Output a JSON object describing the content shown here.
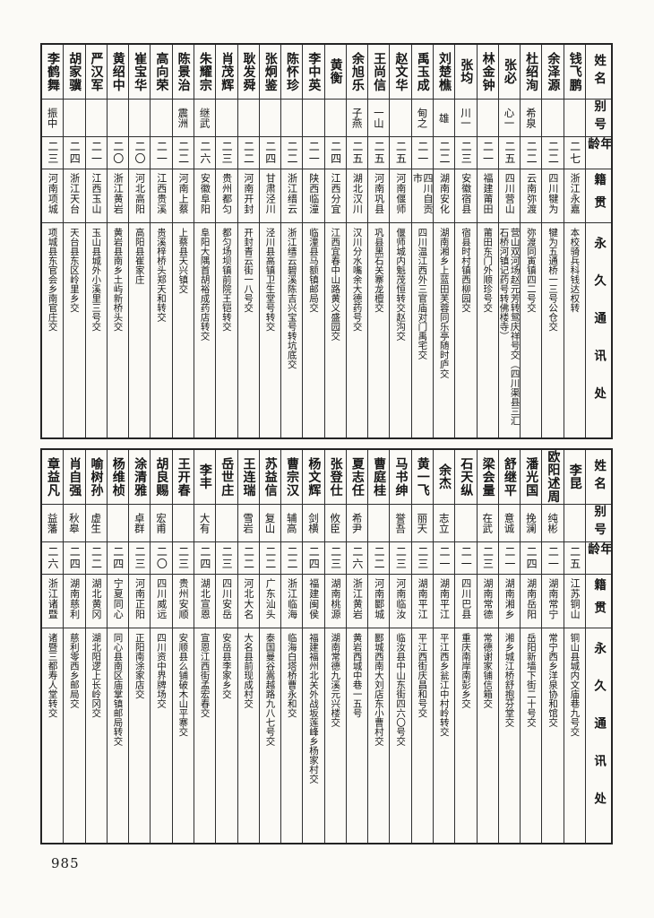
{
  "page_number": "985",
  "column_headers": {
    "name": "姓名",
    "alias": "别号",
    "age": "年龄",
    "origin": "籍贯",
    "address": "永久通讯处"
  },
  "tables": [
    {
      "entries": [
        {
          "name": "钱飞鹏",
          "alias": "",
          "age": "二七",
          "origin": "浙江永嘉",
          "address": "本校骑兵科钱达权转"
        },
        {
          "name": "余泽源",
          "alias": "",
          "age": "二二",
          "origin": "四川犍为",
          "address": "犍为五通桥一三号公仓交"
        },
        {
          "name": "杜绍洵",
          "alias": "希泉",
          "age": "二二",
          "origin": "云南弥渡",
          "address": "弥渡同寅镇四二号交"
        },
        {
          "name": "张必",
          "alias": "心一",
          "age": "二五",
          "origin": "四川营山",
          "address": "营山双河场赵元芳转鸳庆祥号交（四川渠县三汇石桥河镇记药号转佛楼寺）"
        },
        {
          "name": "林金钟",
          "alias": "",
          "age": "二一",
          "origin": "福建莆田",
          "address": "莆田东门外顺珍号交"
        },
        {
          "name": "张均",
          "alias": "川一",
          "age": "二三",
          "origin": "安徽宿县",
          "address": "宿县时村镇西柳园交"
        },
        {
          "name": "刘楚樵",
          "alias": "雄",
          "age": "二二",
          "origin": "湖南安化",
          "address": "湖南湘乡上蓝田芙蓉同乐亭随时庐交"
        },
        {
          "name": "禹玉成",
          "alias": "甸之",
          "age": "二一",
          "origin": "四川自贡市",
          "address": "四川温江西外三官庙对门禹宅交"
        },
        {
          "name": "赵文华",
          "alias": "",
          "age": "二五",
          "origin": "河南偃师",
          "address": "偃师城内魁茂恒转交赵沟交"
        },
        {
          "name": "王尚信",
          "alias": "一山",
          "age": "二五",
          "origin": "河南巩县",
          "address": "巩县黑石关寨龙檀交"
        },
        {
          "name": "余旭乐",
          "alias": "子燕",
          "age": "二五",
          "origin": "湖北汉川",
          "address": "汉川分水嘴余大德药号交"
        },
        {
          "name": "黄衡",
          "alias": "",
          "age": "二四",
          "origin": "江西分宜",
          "address": "江西宜春中山路黄义盛园交"
        },
        {
          "name": "李中英",
          "alias": "",
          "age": "二一",
          "origin": "陕西临潼",
          "address": "临潼县马额镇邮局交"
        },
        {
          "name": "陈怀珍",
          "alias": "",
          "age": "二二",
          "origin": "浙江缙云",
          "address": "浙江缙云碧溪陈吉兴宝号转坑底交"
        },
        {
          "name": "张炯鉴",
          "alias": "",
          "age": "二四",
          "origin": "甘肃泾川",
          "address": "泾川县高镇卫生堂号转交"
        },
        {
          "name": "耿发舜",
          "alias": "",
          "age": "二二",
          "origin": "河南开封",
          "address": "开封青云街一八号交"
        },
        {
          "name": "肖茂辉",
          "alias": "",
          "age": "二三",
          "origin": "贵州都匀",
          "address": "都匀场坝镇前院王铠转交"
        },
        {
          "name": "朱耀宗",
          "alias": "继武",
          "age": "二六",
          "origin": "安徽阜阳",
          "address": "阜阳大隅首胡裕成药店转交"
        },
        {
          "name": "陈景治",
          "alias": "震洲",
          "age": "二二",
          "origin": "河南上蔡",
          "address": "上蔡县天兴镇交"
        },
        {
          "name": "高向荣",
          "alias": "",
          "age": "二一",
          "origin": "江西贵溪",
          "address": "贵溪梓桥头郑天和转交"
        },
        {
          "name": "崔宝华",
          "alias": "",
          "age": "二〇",
          "origin": "河北高阳",
          "address": "高阳县崔家庄"
        },
        {
          "name": "黄绍中",
          "alias": "",
          "age": "二〇",
          "origin": "浙江黄岩",
          "address": "黄岩县南乡土屿新桥头交"
        },
        {
          "name": "严汉军",
          "alias": "",
          "age": "二一",
          "origin": "江西玉山",
          "address": "玉山县城外小溪里三号交"
        },
        {
          "name": "胡家骥",
          "alias": "",
          "age": "二四",
          "origin": "浙江天台",
          "address": "天台县东区岭里乡交"
        },
        {
          "name": "李鹤舞",
          "alias": "振中",
          "age": "二三",
          "origin": "河南项城",
          "address": "项城县东官会乡南官庄交"
        }
      ]
    },
    {
      "entries": [
        {
          "name": "李昆",
          "alias": "",
          "age": "二五",
          "origin": "江苏铜山",
          "address": "铜山县城内文庙巷九号交"
        },
        {
          "name": "欧阳述周",
          "alias": "纯彬",
          "age": "二一",
          "origin": "湖南常宁",
          "address": "常宁西乡洋泉协和馆交"
        },
        {
          "name": "潘光国",
          "alias": "挽澜",
          "age": "二四",
          "origin": "湖南岳阳",
          "address": "岳阳新墙下街二十号交"
        },
        {
          "name": "舒继平",
          "alias": "意诚",
          "age": "二一",
          "origin": "湖南湘乡",
          "address": "湘乡城江桥舒抱芬堂交"
        },
        {
          "name": "梁会量",
          "alias": "在武",
          "age": "二三",
          "origin": "湖南常德",
          "address": "常德谢家铺信箱交"
        },
        {
          "name": "石天纵",
          "alias": "",
          "age": "二一",
          "origin": "四川巴县",
          "address": "重庆南岸南彭乡交"
        },
        {
          "name": "余杰",
          "alias": "志立",
          "age": "二一",
          "origin": "湖南平江",
          "address": "平江西乡瓮江中村岭转交"
        },
        {
          "name": "黄一飞",
          "alias": "丽天",
          "age": "二三",
          "origin": "湖南平江",
          "address": "平江西街庆昌和号交"
        },
        {
          "name": "马书绅",
          "alias": "誉吾",
          "age": "二三",
          "origin": "河南临汝",
          "address": "临汝县中山东街四六〇号交"
        },
        {
          "name": "曹庭桂",
          "alias": "",
          "age": "二二",
          "origin": "河南郾城",
          "address": "郾城西南大刘店东小曹村交"
        },
        {
          "name": "夏志任",
          "alias": "希尹",
          "age": "二六",
          "origin": "浙江黄岩",
          "address": "黄岩西城中巷一五号"
        },
        {
          "name": "张登仕",
          "alias": "攸臣",
          "age": "二三",
          "origin": "湖南桃源",
          "address": "湖南常德九溪元兴楼交"
        },
        {
          "name": "杨文辉",
          "alias": "剑横",
          "age": "二四",
          "origin": "福建闽侯",
          "address": "福建福州北关外战坂莲峰乡杨家村交"
        },
        {
          "name": "曹宗汉",
          "alias": "辅高",
          "age": "二二",
          "origin": "浙江临海",
          "address": "临海白塔桥曹永和交"
        },
        {
          "name": "苏益信",
          "alias": "复山",
          "age": "二二",
          "origin": "广东汕头",
          "address": "泰国曼谷嵩越路九八七号交"
        },
        {
          "name": "王连瑞",
          "alias": "雪岩",
          "age": "二二",
          "origin": "河北大名",
          "address": "大名县前现成村交"
        },
        {
          "name": "岳世庄",
          "alias": "",
          "age": "二三",
          "origin": "四川安岳",
          "address": "安岳县李家乡交"
        },
        {
          "name": "李丰",
          "alias": "大有",
          "age": "二四",
          "origin": "湖北宣恩",
          "address": "宣恩江西街孟宏春交"
        },
        {
          "name": "王开春",
          "alias": "",
          "age": "二三",
          "origin": "贵州安顺",
          "address": "安顺县么铺破木山平寨交"
        },
        {
          "name": "胡良赐",
          "alias": "宏甫",
          "age": "二〇",
          "origin": "四川威远",
          "address": "四川资中界牌场交"
        },
        {
          "name": "涂清雅",
          "alias": "卓群",
          "age": "二三",
          "origin": "河南正阳",
          "address": "正阳南涂家店交"
        },
        {
          "name": "杨维桢",
          "alias": "",
          "age": "二四",
          "origin": "宁夏同心",
          "address": "同心县南区庙掌镇邮局转交"
        },
        {
          "name": "喻树孙",
          "alias": "虚生",
          "age": "二二",
          "origin": "湖北黄冈",
          "address": "湖北阳逻上长岭冈交"
        },
        {
          "name": "肖自强",
          "alias": "秋皋",
          "age": "二四",
          "origin": "湖南慈利",
          "address": "慈利零西乡邮局交"
        },
        {
          "name": "章益凡",
          "alias": "益藩",
          "age": "二六",
          "origin": "浙江诸暨",
          "address": "诸暨三都寿人堂转交"
        }
      ]
    }
  ]
}
